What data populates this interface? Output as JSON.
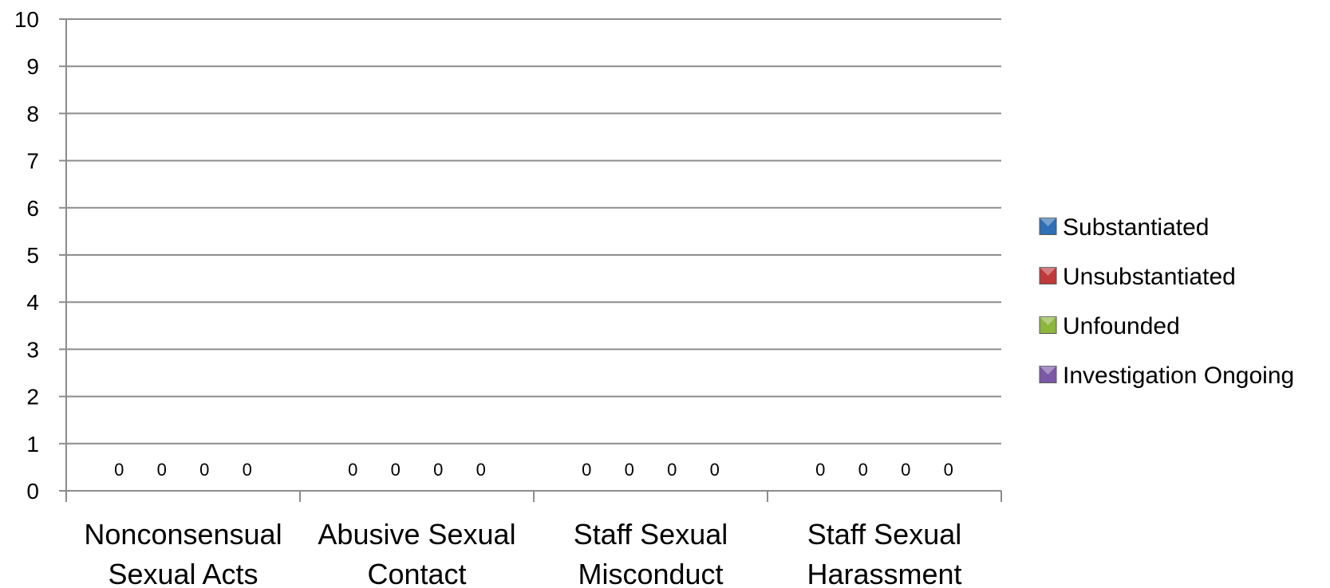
{
  "chart_data": {
    "type": "bar",
    "categories": [
      [
        "Nonconsensual",
        "Sexual Acts"
      ],
      [
        "Abusive Sexual",
        "Contact"
      ],
      [
        "Staff Sexual",
        "Misconduct"
      ],
      [
        "Staff Sexual",
        "Harassment"
      ]
    ],
    "series": [
      {
        "name": "Substantiated",
        "color": "#2f6fb5",
        "values": [
          0,
          0,
          0,
          0
        ]
      },
      {
        "name": "Unsubstantiated",
        "color": "#c0393b",
        "values": [
          0,
          0,
          0,
          0
        ]
      },
      {
        "name": "Unfounded",
        "color": "#8db63c",
        "values": [
          0,
          0,
          0,
          0
        ]
      },
      {
        "name": "Investigation Ongoing",
        "color": "#7b59a6",
        "values": [
          0,
          0,
          0,
          0
        ]
      }
    ],
    "data_labels": [
      [
        "0",
        "0",
        "0",
        "0"
      ],
      [
        "0",
        "0",
        "0",
        "0"
      ],
      [
        "0",
        "0",
        "0",
        "0"
      ],
      [
        "0",
        "0",
        "0",
        "0"
      ]
    ],
    "ylim": [
      0,
      10
    ],
    "yticks": [
      "0",
      "1",
      "2",
      "3",
      "4",
      "5",
      "6",
      "7",
      "8",
      "9",
      "10"
    ],
    "grid": true,
    "legend_position": "right",
    "gridline_color": "#8c8c8c"
  }
}
